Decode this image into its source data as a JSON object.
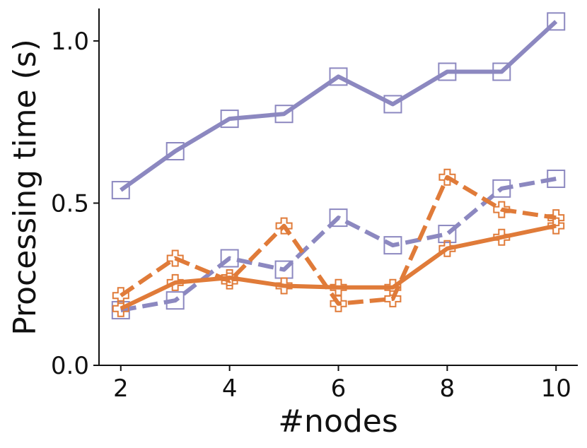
{
  "chart_data": {
    "type": "line",
    "title": "",
    "xlabel": "#nodes",
    "ylabel": "Processing time (s)",
    "xlim": [
      1.6,
      10.4
    ],
    "ylim": [
      0.0,
      1.1
    ],
    "xticks": [
      2,
      4,
      6,
      8,
      10
    ],
    "xtick_labels": [
      "2",
      "4",
      "6",
      "8",
      "10"
    ],
    "yticks": [
      0.0,
      0.5,
      1.0
    ],
    "ytick_labels": [
      "0.0",
      "0.5",
      "1.0"
    ],
    "grid": false,
    "legend": "none",
    "x": [
      2,
      3,
      4,
      5,
      6,
      7,
      8,
      9,
      10
    ],
    "series": [
      {
        "color": "#8c88c0",
        "dash": "solid",
        "marker": "square",
        "values": [
          0.54,
          0.66,
          0.76,
          0.775,
          0.89,
          0.805,
          0.905,
          0.905,
          1.06
        ]
      },
      {
        "color": "#8c88c0",
        "dash": "dashed",
        "marker": "square",
        "values": [
          0.17,
          0.2,
          0.33,
          0.295,
          0.455,
          0.37,
          0.405,
          0.545,
          0.575
        ]
      },
      {
        "color": "#e07b39",
        "dash": "solid",
        "marker": "plus",
        "values": [
          0.175,
          0.255,
          0.27,
          0.245,
          0.24,
          0.24,
          0.36,
          0.395,
          0.43
        ]
      },
      {
        "color": "#e07b39",
        "dash": "dashed",
        "marker": "plus",
        "values": [
          0.215,
          0.33,
          0.26,
          0.43,
          0.19,
          0.205,
          0.58,
          0.48,
          0.455
        ]
      }
    ]
  }
}
